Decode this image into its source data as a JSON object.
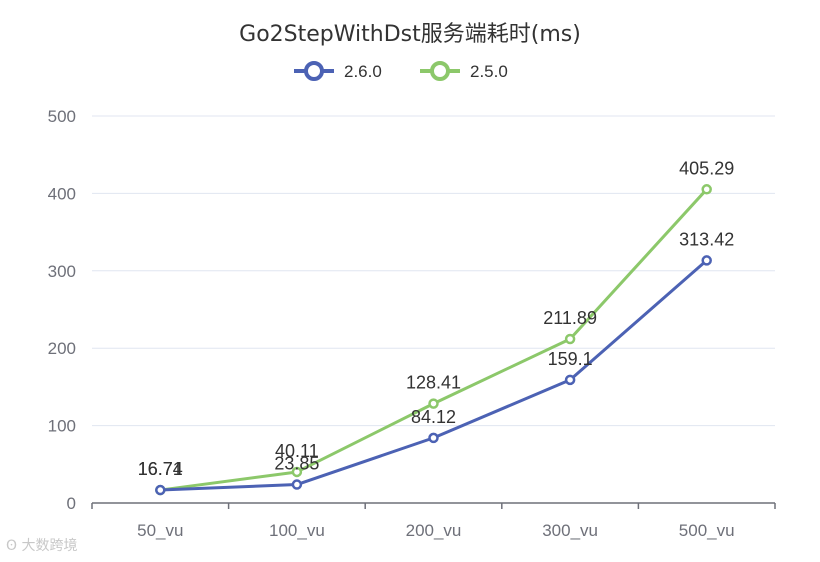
{
  "chart_data": {
    "type": "line",
    "title": "Go2StepWithDst服务端耗时(ms)",
    "categories": [
      "50_vu",
      "100_vu",
      "200_vu",
      "300_vu",
      "500_vu"
    ],
    "ylim": [
      0,
      500
    ],
    "yticks": [
      0,
      100,
      200,
      300,
      400,
      500
    ],
    "grid": true,
    "legend_position": "top-center",
    "series": [
      {
        "name": "2.6.0",
        "color": "#4c62b4",
        "values": [
          16.74,
          23.85,
          84.12,
          159.1,
          313.42
        ],
        "labels": [
          "16.74",
          "23.85",
          "84.12",
          "159.1",
          "313.42"
        ]
      },
      {
        "name": "2.5.0",
        "color": "#8cc86a",
        "values": [
          16.71,
          40.11,
          128.41,
          211.89,
          405.29
        ],
        "labels": [
          "16.71",
          "40.11",
          "128.41",
          "211.89",
          "405.29"
        ]
      }
    ]
  },
  "watermark": {
    "text": "大数跨境"
  }
}
